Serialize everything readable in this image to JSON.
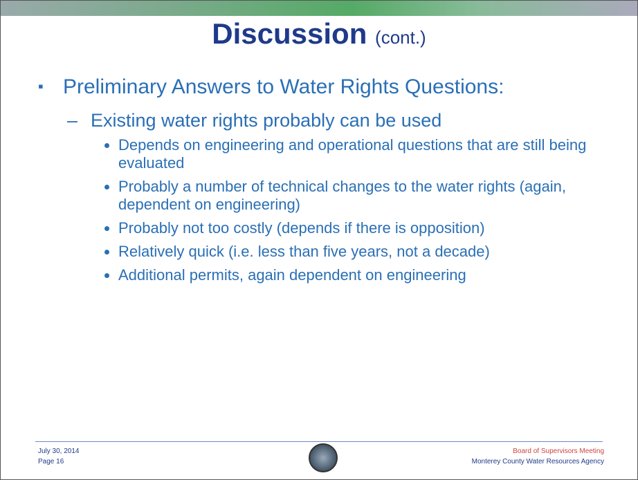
{
  "title": {
    "main": "Discussion",
    "suffix": "(cont.)"
  },
  "bullet": "Preliminary Answers to Water Rights Questions:",
  "sub_bullet": "Existing water rights probably can be used",
  "points": [
    "Depends on engineering and operational questions that are still being evaluated",
    "Probably a number of technical changes to the water rights (again, dependent on engineering)",
    "Probably not too costly (depends if there is opposition)",
    "Relatively quick (i.e. less than five years, not a decade)",
    "Additional permits, again dependent on engineering"
  ],
  "footer": {
    "date": "July 30, 2014",
    "page": "Page 16",
    "meeting": "Board of Supervisors Meeting",
    "agency": "Monterey County Water Resources Agency"
  }
}
